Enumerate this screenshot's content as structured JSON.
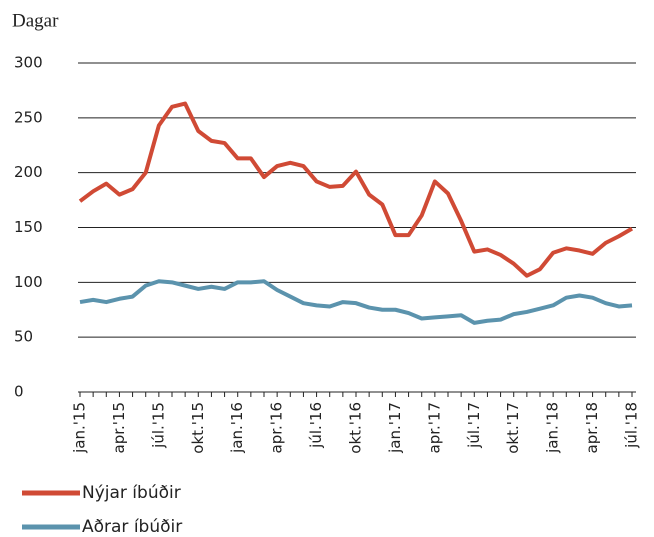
{
  "chart_data": {
    "type": "line",
    "ylabel": "Dagar",
    "categories": [
      "jan.'15",
      null,
      null,
      "apr.'15",
      null,
      null,
      "júl.'15",
      null,
      null,
      "okt.'15",
      null,
      null,
      "jan.'16",
      null,
      null,
      "apr.'16",
      null,
      null,
      "júl.'16",
      null,
      null,
      "okt.'16",
      null,
      null,
      "jan.'17",
      null,
      null,
      "apr.'17",
      null,
      null,
      "júl.'17",
      null,
      null,
      "okt.'17",
      null,
      null,
      "jan.'18",
      null,
      null,
      "apr.'18",
      null,
      null,
      "júl.'18"
    ],
    "series": [
      {
        "name": "Nýjar íbúðir",
        "color": "#d04a35",
        "values": [
          174,
          183,
          190,
          180,
          185,
          200,
          243,
          260,
          263,
          238,
          229,
          227,
          213,
          213,
          196,
          206,
          209,
          206,
          192,
          187,
          188,
          201,
          180,
          171,
          143,
          143,
          161,
          192,
          181,
          156,
          128,
          130,
          125,
          117,
          106,
          112,
          127,
          131,
          129,
          126,
          136,
          142,
          149
        ]
      },
      {
        "name": "Aðrar íbúðir",
        "color": "#5b93ad",
        "values": [
          82,
          84,
          82,
          85,
          87,
          97,
          101,
          100,
          97,
          94,
          96,
          94,
          100,
          100,
          101,
          93,
          87,
          81,
          79,
          78,
          82,
          81,
          77,
          75,
          75,
          72,
          67,
          68,
          69,
          70,
          63,
          65,
          66,
          71,
          73,
          76,
          79,
          86,
          88,
          86,
          81,
          78,
          79
        ]
      }
    ],
    "ylim": [
      0,
      300
    ],
    "yticks": [
      0,
      50,
      100,
      150,
      200,
      250,
      300
    ],
    "grid": true,
    "legend": "bottom"
  }
}
